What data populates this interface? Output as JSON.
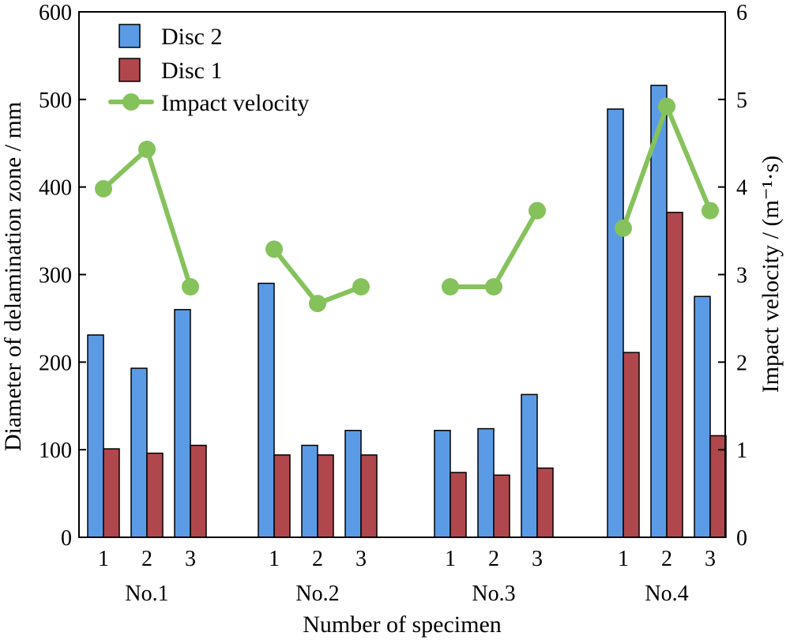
{
  "chart_data": {
    "type": "bar",
    "xlabel": "Number of specimen",
    "ylabel_left": "Diameter of delamination zone / mm",
    "ylabel_right": "Impact velocity / (m⁻¹·s)",
    "ylim_left": [
      0,
      600
    ],
    "ylim_right": [
      0,
      6
    ],
    "yticks_left": [
      0,
      100,
      200,
      300,
      400,
      500,
      600
    ],
    "yticks_right": [
      0,
      1,
      2,
      3,
      4,
      5,
      6
    ],
    "grid": false,
    "legend_position": "top-left",
    "groups": [
      "No.1",
      "No.2",
      "No.3",
      "No.4"
    ],
    "specimen_labels": [
      "1",
      "2",
      "3"
    ],
    "series": [
      {
        "name": "Disc 2",
        "kind": "bar",
        "axis": "left",
        "color": "#5b9be6",
        "values": [
          [
            231,
            193,
            260
          ],
          [
            290,
            105,
            122
          ],
          [
            122,
            124,
            163
          ],
          [
            489,
            516,
            275
          ]
        ]
      },
      {
        "name": "Disc 1",
        "kind": "bar",
        "axis": "left",
        "color": "#b0474d",
        "values": [
          [
            101,
            96,
            105
          ],
          [
            94,
            94,
            94
          ],
          [
            74,
            71,
            79
          ],
          [
            211,
            371,
            116
          ]
        ]
      },
      {
        "name": "Impact velocity",
        "kind": "line",
        "axis": "right",
        "color": "#86c25c",
        "values": [
          [
            3.98,
            4.43,
            2.86
          ],
          [
            3.29,
            2.67,
            2.86
          ],
          [
            2.86,
            2.86,
            3.73
          ],
          [
            3.53,
            4.92,
            3.73
          ]
        ]
      }
    ]
  }
}
